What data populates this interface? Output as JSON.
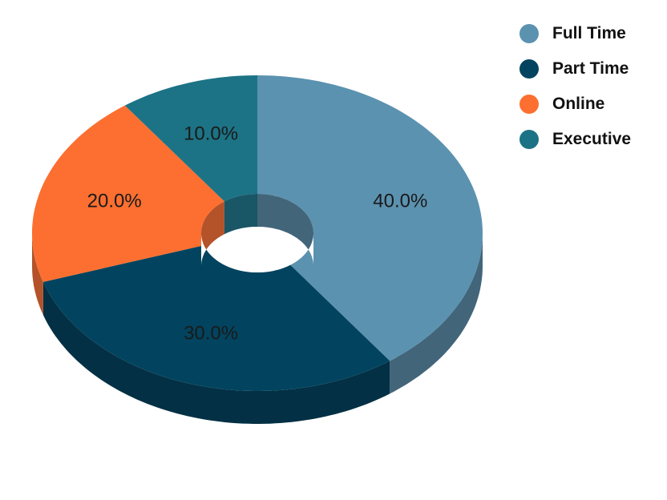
{
  "chart_data": {
    "type": "pie",
    "variant": "3d-donut",
    "categories": [
      "Full Time",
      "Part Time",
      "Online",
      "Executive"
    ],
    "values": [
      40.0,
      30.0,
      20.0,
      10.0
    ],
    "labels": [
      "40.0%",
      "30.0%",
      "20.0%",
      "10.0%"
    ],
    "colors": [
      "#5b92b0",
      "#02445f",
      "#fc6f30",
      "#1c7385"
    ],
    "side_colors": [
      "#42657a",
      "#033044",
      "#b4522a",
      "#195666"
    ],
    "legend_position": "top-right"
  }
}
